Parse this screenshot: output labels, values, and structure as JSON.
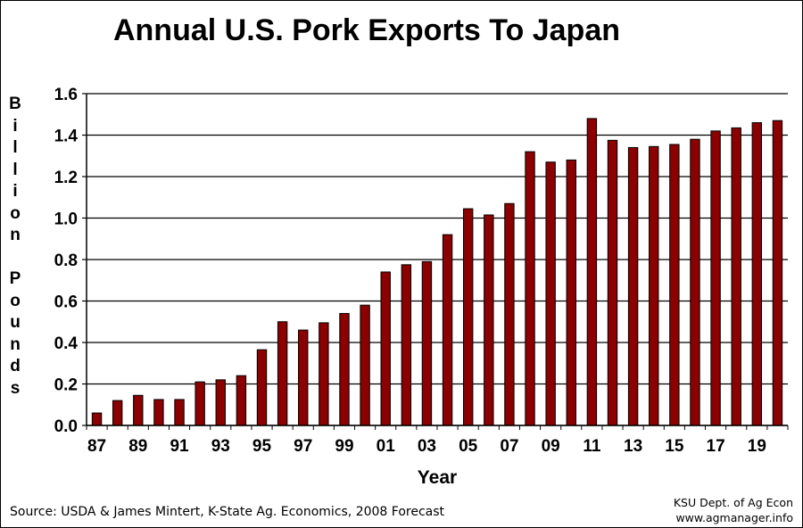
{
  "chart_data": {
    "type": "bar",
    "title": "Annual U.S. Pork Exports To Japan",
    "xlabel": "Year",
    "ylabel": "Billion Pounds",
    "ylim": [
      0,
      1.6
    ],
    "yticks": [
      "0.0",
      "0.2",
      "0.4",
      "0.6",
      "0.8",
      "1.0",
      "1.2",
      "1.4",
      "1.6"
    ],
    "grid": true,
    "bar_color": "#8B0000",
    "categories": [
      "87",
      "88",
      "89",
      "90",
      "91",
      "92",
      "93",
      "94",
      "95",
      "96",
      "97",
      "98",
      "99",
      "00",
      "01",
      "02",
      "03",
      "04",
      "05",
      "06",
      "07",
      "08",
      "09",
      "10",
      "11",
      "12",
      "13",
      "14",
      "15",
      "16",
      "17",
      "18",
      "19",
      "20"
    ],
    "tick_labels": [
      "87",
      "89",
      "91",
      "93",
      "95",
      "97",
      "99",
      "01",
      "03",
      "05",
      "07",
      "09",
      "11",
      "13",
      "15",
      "17",
      "19"
    ],
    "values": [
      0.06,
      0.12,
      0.145,
      0.125,
      0.125,
      0.21,
      0.22,
      0.24,
      0.365,
      0.5,
      0.46,
      0.495,
      0.54,
      0.58,
      0.74,
      0.775,
      0.79,
      0.92,
      1.045,
      1.015,
      1.07,
      1.32,
      1.27,
      1.28,
      1.48,
      1.375,
      1.34,
      1.345,
      1.355,
      1.38,
      1.42,
      1.435,
      1.46,
      1.47
    ]
  },
  "source": "Source: USDA & James Mintert, K-State Ag. Economics, 2008 Forecast",
  "credit": {
    "line1": "KSU Dept. of Ag Econ",
    "line2": "www.agmanager.info"
  }
}
